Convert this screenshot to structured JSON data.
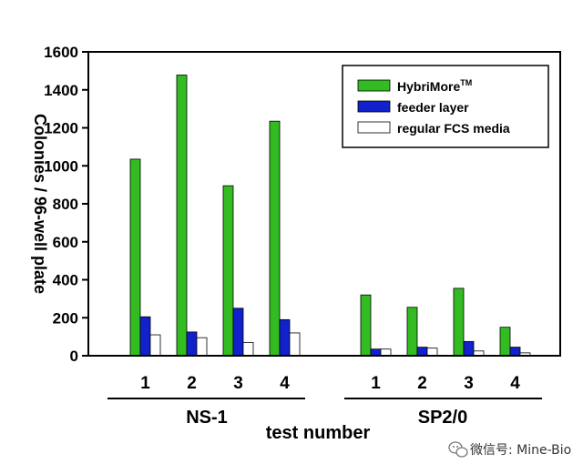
{
  "chart_data": {
    "type": "bar",
    "title": "",
    "xlabel": "test number",
    "ylabel": "Colonies / 96-well plate",
    "ylim": [
      0,
      1600
    ],
    "yticks": [
      "0",
      "200",
      "400",
      "600",
      "800",
      "1000",
      "1200",
      "1400",
      "1600"
    ],
    "groups": [
      {
        "name": "NS-1",
        "categories": [
          "1",
          "2",
          "3",
          "4"
        ]
      },
      {
        "name": "SP2/0",
        "categories": [
          "1",
          "2",
          "3",
          "4"
        ]
      }
    ],
    "series": [
      {
        "name": "HybriMore",
        "name_superscript": "TM",
        "color": "#33bb22",
        "values": [
          1035,
          1478,
          895,
          1235,
          320,
          255,
          355,
          150
        ]
      },
      {
        "name": "feeder layer",
        "color": "#1122cc",
        "values": [
          205,
          125,
          250,
          190,
          35,
          45,
          75,
          45
        ]
      },
      {
        "name": "regular FCS media",
        "color": "#ffffff",
        "values": [
          110,
          95,
          70,
          120,
          35,
          40,
          25,
          15
        ]
      }
    ],
    "legend_position": "top-right",
    "grid": false
  },
  "watermark": {
    "text": "微信号: Mine-Bio",
    "icon": "wechat-icon"
  }
}
